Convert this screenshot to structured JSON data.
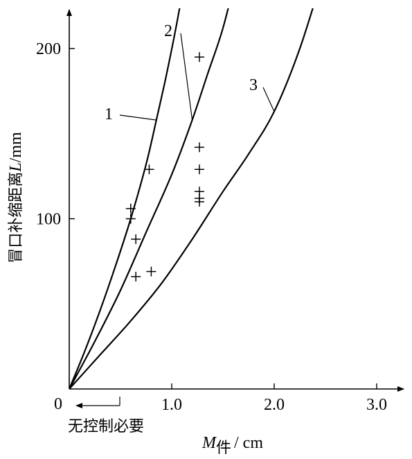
{
  "chart_data": {
    "type": "line",
    "xlabel_main": "M",
    "xlabel_sub": "件",
    "xlabel_unit": "/ cm",
    "ylabel_text": "冒口补缩距离",
    "ylabel_italic": "L",
    "ylabel_unit": "/mm",
    "xlim": [
      0,
      3.0
    ],
    "ylim": [
      0,
      220
    ],
    "x_ticks": [
      1.0,
      2.0,
      3.0
    ],
    "x_tick_labels": [
      "1.0",
      "2.0",
      "3.0"
    ],
    "y_ticks": [
      100,
      200
    ],
    "y_tick_labels": [
      "100",
      "200"
    ],
    "origin_label": "0",
    "annotation": "无控制必要",
    "series": [
      {
        "name": "1",
        "x": [
          0,
          0.15,
          0.3,
          0.45,
          0.6,
          0.75,
          0.85,
          0.95,
          1.05,
          1.15
        ],
        "y": [
          0,
          22,
          46,
          72,
          100,
          132,
          158,
          185,
          215,
          248
        ]
      },
      {
        "name": "2",
        "x": [
          0,
          0.25,
          0.5,
          0.75,
          1.0,
          1.2,
          1.35,
          1.5,
          1.65
        ],
        "y": [
          0,
          28,
          58,
          92,
          126,
          158,
          185,
          212,
          248
        ]
      },
      {
        "name": "3",
        "x": [
          0,
          0.3,
          0.6,
          0.9,
          1.2,
          1.5,
          1.75,
          2.0,
          2.25,
          2.5
        ],
        "y": [
          0,
          20,
          40,
          62,
          88,
          116,
          138,
          163,
          200,
          248
        ]
      }
    ],
    "scatter": {
      "x": [
        0.6,
        0.6,
        0.65,
        0.65,
        0.8,
        0.78,
        1.27,
        1.27,
        1.27,
        1.27,
        1.27,
        1.27
      ],
      "y": [
        106,
        100,
        88,
        66,
        69,
        129,
        142,
        129,
        116,
        112,
        110,
        195
      ]
    }
  }
}
